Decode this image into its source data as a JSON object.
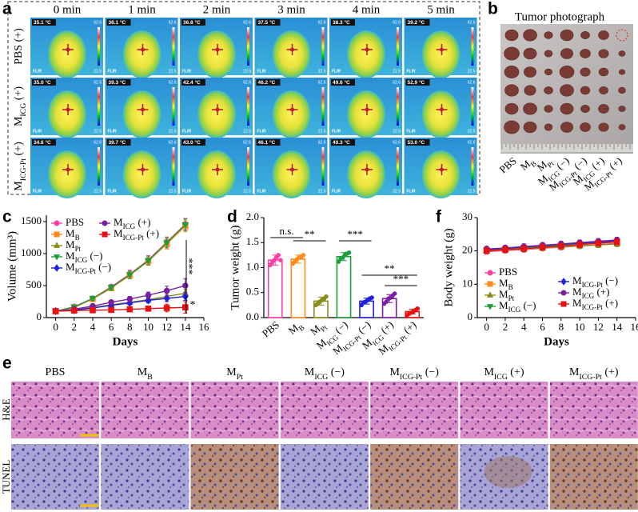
{
  "figure": {
    "panel_labels": [
      "a",
      "b",
      "c",
      "d",
      "e",
      "f"
    ],
    "thermal": {
      "columns": [
        "0 min",
        "1 min",
        "2 min",
        "3 min",
        "4 min",
        "5 min"
      ],
      "rows": [
        {
          "base": "PBS",
          "suffix": " (+)"
        },
        {
          "base": "M",
          "sub": "ICG",
          "suffix": " (+)"
        },
        {
          "base": "M",
          "sub": "ICG-Pt",
          "suffix": " (+)"
        }
      ],
      "temperatures": [
        [
          "35.1 °C",
          "36.1 °C",
          "36.8 °C",
          "37.5 °C",
          "38.3 °C",
          "39.2 °C"
        ],
        [
          "35.0 °C",
          "39.3 °C",
          "42.4 °C",
          "46.2 °C",
          "49.6 °C",
          "52.9 °C"
        ],
        [
          "34.6 °C",
          "39.7 °C",
          "43.0 °C",
          "46.1 °C",
          "49.3 °C",
          "53.0 °C"
        ]
      ],
      "scale_max": "62.6",
      "scale_min": "22.5",
      "brand": "FLIR"
    },
    "tumor_photo": {
      "title": "Tumor photograph",
      "groups": [
        {
          "base": "PBS"
        },
        {
          "base": "M",
          "sub": "B"
        },
        {
          "base": "M",
          "sub": "Pt"
        },
        {
          "base": "M",
          "sub": "ICG",
          "suffix": " (−)"
        },
        {
          "base": "M",
          "sub": "ICG-Pt",
          "suffix": " (−)"
        },
        {
          "base": "M",
          "sub": "ICG",
          "suffix": " (+)"
        },
        {
          "base": "M",
          "sub": "ICG-Pt",
          "suffix": " (+)"
        }
      ]
    },
    "histology": {
      "columns": [
        {
          "base": "PBS"
        },
        {
          "base": "M",
          "sub": "B"
        },
        {
          "base": "M",
          "sub": "Pt"
        },
        {
          "base": "M",
          "sub": "ICG",
          "suffix": " (−)"
        },
        {
          "base": "M",
          "sub": "ICG-Pt",
          "suffix": " (−)"
        },
        {
          "base": "M",
          "sub": "ICG",
          "suffix": " (+)"
        },
        {
          "base": "M",
          "sub": "ICG-Pt",
          "suffix": " (+)"
        }
      ],
      "rows": [
        "H&E",
        "TUNEL"
      ]
    }
  },
  "chart_data": [
    {
      "type": "line",
      "xlabel": "Days",
      "ylabel": "Volume (mm³)",
      "x": [
        0,
        2,
        4,
        6,
        8,
        10,
        12,
        14
      ],
      "xlim": [
        -1,
        16
      ],
      "xticks": [
        0,
        2,
        4,
        6,
        8,
        10,
        12,
        14,
        16
      ],
      "ylim": [
        0,
        1600
      ],
      "yticks": [
        0,
        500,
        1000,
        1500
      ],
      "legend": "upper left",
      "series": [
        {
          "name": {
            "base": "PBS"
          },
          "color": "#ff3fa4",
          "marker": "circle",
          "values": [
            100,
            170,
            300,
            480,
            680,
            900,
            1180,
            1460
          ],
          "errors": [
            10,
            20,
            30,
            40,
            60,
            70,
            80,
            90
          ]
        },
        {
          "name": {
            "base": "M",
            "sub": "B"
          },
          "color": "#ff8c1a",
          "marker": "square",
          "values": [
            100,
            160,
            290,
            460,
            660,
            880,
            1150,
            1430
          ],
          "errors": [
            10,
            20,
            30,
            40,
            50,
            60,
            80,
            90
          ]
        },
        {
          "name": {
            "base": "M",
            "sub": "Pt"
          },
          "color": "#8b8b1a",
          "marker": "tri-up",
          "values": [
            100,
            120,
            160,
            200,
            240,
            280,
            330,
            380
          ],
          "errors": [
            10,
            15,
            20,
            25,
            30,
            40,
            50,
            60
          ]
        },
        {
          "name": {
            "base": "M",
            "sub": "ICG",
            "suffix": " (−)"
          },
          "color": "#1e9e3a",
          "marker": "tri-down",
          "values": [
            100,
            165,
            300,
            470,
            670,
            890,
            1170,
            1450
          ],
          "errors": [
            10,
            20,
            30,
            40,
            60,
            70,
            80,
            90
          ]
        },
        {
          "name": {
            "base": "M",
            "sub": "ICG-Pt",
            "suffix": " (−)"
          },
          "color": "#2020e0",
          "marker": "diamond",
          "values": [
            100,
            115,
            150,
            190,
            230,
            270,
            300,
            330
          ],
          "errors": [
            10,
            15,
            20,
            25,
            30,
            40,
            50,
            60
          ]
        },
        {
          "name": {
            "base": "M",
            "sub": "ICG",
            "suffix": " (+)"
          },
          "color": "#7b1fa2",
          "marker": "circle",
          "values": [
            100,
            130,
            180,
            240,
            290,
            350,
            420,
            500
          ],
          "errors": [
            10,
            15,
            20,
            30,
            40,
            50,
            70,
            110
          ]
        },
        {
          "name": {
            "base": "M",
            "sub": "ICG-Pt",
            "suffix": " (+)"
          },
          "color": "#e81010",
          "marker": "square",
          "values": [
            100,
            110,
            115,
            120,
            130,
            140,
            150,
            160
          ],
          "errors": [
            10,
            15,
            20,
            25,
            30,
            40,
            60,
            90
          ]
        }
      ],
      "annotations": [
        "***",
        "*"
      ]
    },
    {
      "type": "bar",
      "ylabel": "Tumor weight (g)",
      "categories": [
        {
          "base": "PBS"
        },
        {
          "base": "M",
          "sub": "B"
        },
        {
          "base": "M",
          "sub": "Pt"
        },
        {
          "base": "M",
          "sub": "ICG",
          "suffix": " (−)"
        },
        {
          "base": "M",
          "sub": "ICG-Pt",
          "suffix": " (−)"
        },
        {
          "base": "M",
          "sub": "ICG",
          "suffix": " (+)"
        },
        {
          "base": "M",
          "sub": "ICG-Pt",
          "suffix": " (+)"
        }
      ],
      "values": [
        1.15,
        1.17,
        0.33,
        1.22,
        0.33,
        0.38,
        0.12
      ],
      "errors": [
        0.1,
        0.08,
        0.08,
        0.08,
        0.06,
        0.08,
        0.05
      ],
      "points": [
        [
          1.05,
          1.1,
          1.15,
          1.2,
          1.25,
          1.15
        ],
        [
          1.08,
          1.12,
          1.17,
          1.2,
          1.22,
          1.25
        ],
        [
          0.25,
          0.28,
          0.32,
          0.35,
          0.38,
          0.42
        ],
        [
          1.12,
          1.18,
          1.2,
          1.25,
          1.28,
          1.3
        ],
        [
          0.25,
          0.3,
          0.32,
          0.35,
          0.38,
          0.4
        ],
        [
          0.28,
          0.32,
          0.38,
          0.4,
          0.44,
          0.48
        ],
        [
          0.05,
          0.08,
          0.1,
          0.12,
          0.15,
          0.18
        ]
      ],
      "colors": [
        "#ff3fa4",
        "#ff8c1a",
        "#8b8b1a",
        "#1e9e3a",
        "#2020e0",
        "#7b1fa2",
        "#e81010"
      ],
      "ylim": [
        0,
        2
      ],
      "yticks": [
        {
          "value": 0,
          "label": "0.0"
        },
        0.5,
        {
          "value": 1,
          "label": "1.0"
        },
        1.5,
        {
          "value": 2,
          "label": "2.0"
        }
      ],
      "annotations": [
        "n.s.",
        "**",
        "***",
        "**",
        "***"
      ]
    },
    {
      "type": "line",
      "xlabel": "Days",
      "ylabel": "Body weight (g)",
      "x": [
        0,
        2,
        4,
        6,
        8,
        10,
        12,
        14
      ],
      "xlim": [
        -1,
        16
      ],
      "xticks": [
        0,
        2,
        4,
        6,
        8,
        10,
        12,
        14,
        16
      ],
      "ylim": [
        0,
        30
      ],
      "yticks": [
        0,
        10,
        20,
        30
      ],
      "legend": "lower right",
      "series": [
        {
          "name": {
            "base": "PBS"
          },
          "color": "#ff3fa4",
          "marker": "circle",
          "values": [
            19.8,
            20.1,
            20.4,
            20.8,
            21.1,
            21.5,
            21.9,
            22.3
          ],
          "errors": [
            0.8,
            0.8,
            0.8,
            0.8,
            0.8,
            0.8,
            0.8,
            0.8
          ]
        },
        {
          "name": {
            "base": "M",
            "sub": "B"
          },
          "color": "#ff8c1a",
          "marker": "square",
          "values": [
            20.2,
            20.5,
            20.9,
            21.3,
            21.6,
            22.0,
            22.4,
            22.8
          ],
          "errors": [
            0.8,
            0.8,
            0.8,
            0.8,
            0.8,
            0.8,
            0.8,
            0.8
          ]
        },
        {
          "name": {
            "base": "M",
            "sub": "Pt"
          },
          "color": "#8b8b1a",
          "marker": "tri-up",
          "values": [
            20.0,
            20.3,
            20.6,
            20.9,
            21.2,
            21.5,
            21.8,
            22.1
          ],
          "errors": [
            0.8,
            0.8,
            0.8,
            0.8,
            0.8,
            0.8,
            0.8,
            0.8
          ]
        },
        {
          "name": {
            "base": "M",
            "sub": "ICG",
            "suffix": " (−)"
          },
          "color": "#1e9e3a",
          "marker": "tri-down",
          "values": [
            20.3,
            20.6,
            21.0,
            21.4,
            21.7,
            22.1,
            22.5,
            22.9
          ],
          "errors": [
            0.8,
            0.8,
            0.8,
            0.8,
            0.8,
            0.8,
            0.8,
            0.8
          ]
        },
        {
          "name": {
            "base": "M",
            "sub": "ICG-Pt",
            "suffix": " (−)"
          },
          "color": "#2020e0",
          "marker": "diamond",
          "values": [
            20.5,
            20.8,
            21.2,
            21.6,
            22.0,
            22.3,
            22.7,
            23.1
          ],
          "errors": [
            0.8,
            0.8,
            0.8,
            0.8,
            0.8,
            0.8,
            0.8,
            0.8
          ]
        },
        {
          "name": {
            "base": "M",
            "sub": "ICG",
            "suffix": " (+)"
          },
          "color": "#7b1fa2",
          "marker": "circle",
          "values": [
            20.6,
            20.9,
            21.3,
            21.7,
            22.1,
            22.5,
            22.9,
            23.3
          ],
          "errors": [
            0.8,
            0.8,
            0.8,
            0.8,
            0.8,
            0.8,
            0.8,
            0.8
          ]
        },
        {
          "name": {
            "base": "M",
            "sub": "ICG-Pt",
            "suffix": " (+)"
          },
          "color": "#e81010",
          "marker": "square",
          "values": [
            20.1,
            20.4,
            20.7,
            21.1,
            21.5,
            21.9,
            22.3,
            22.7
          ],
          "errors": [
            0.8,
            0.8,
            0.8,
            0.8,
            0.8,
            0.8,
            0.8,
            0.8
          ]
        }
      ]
    }
  ]
}
